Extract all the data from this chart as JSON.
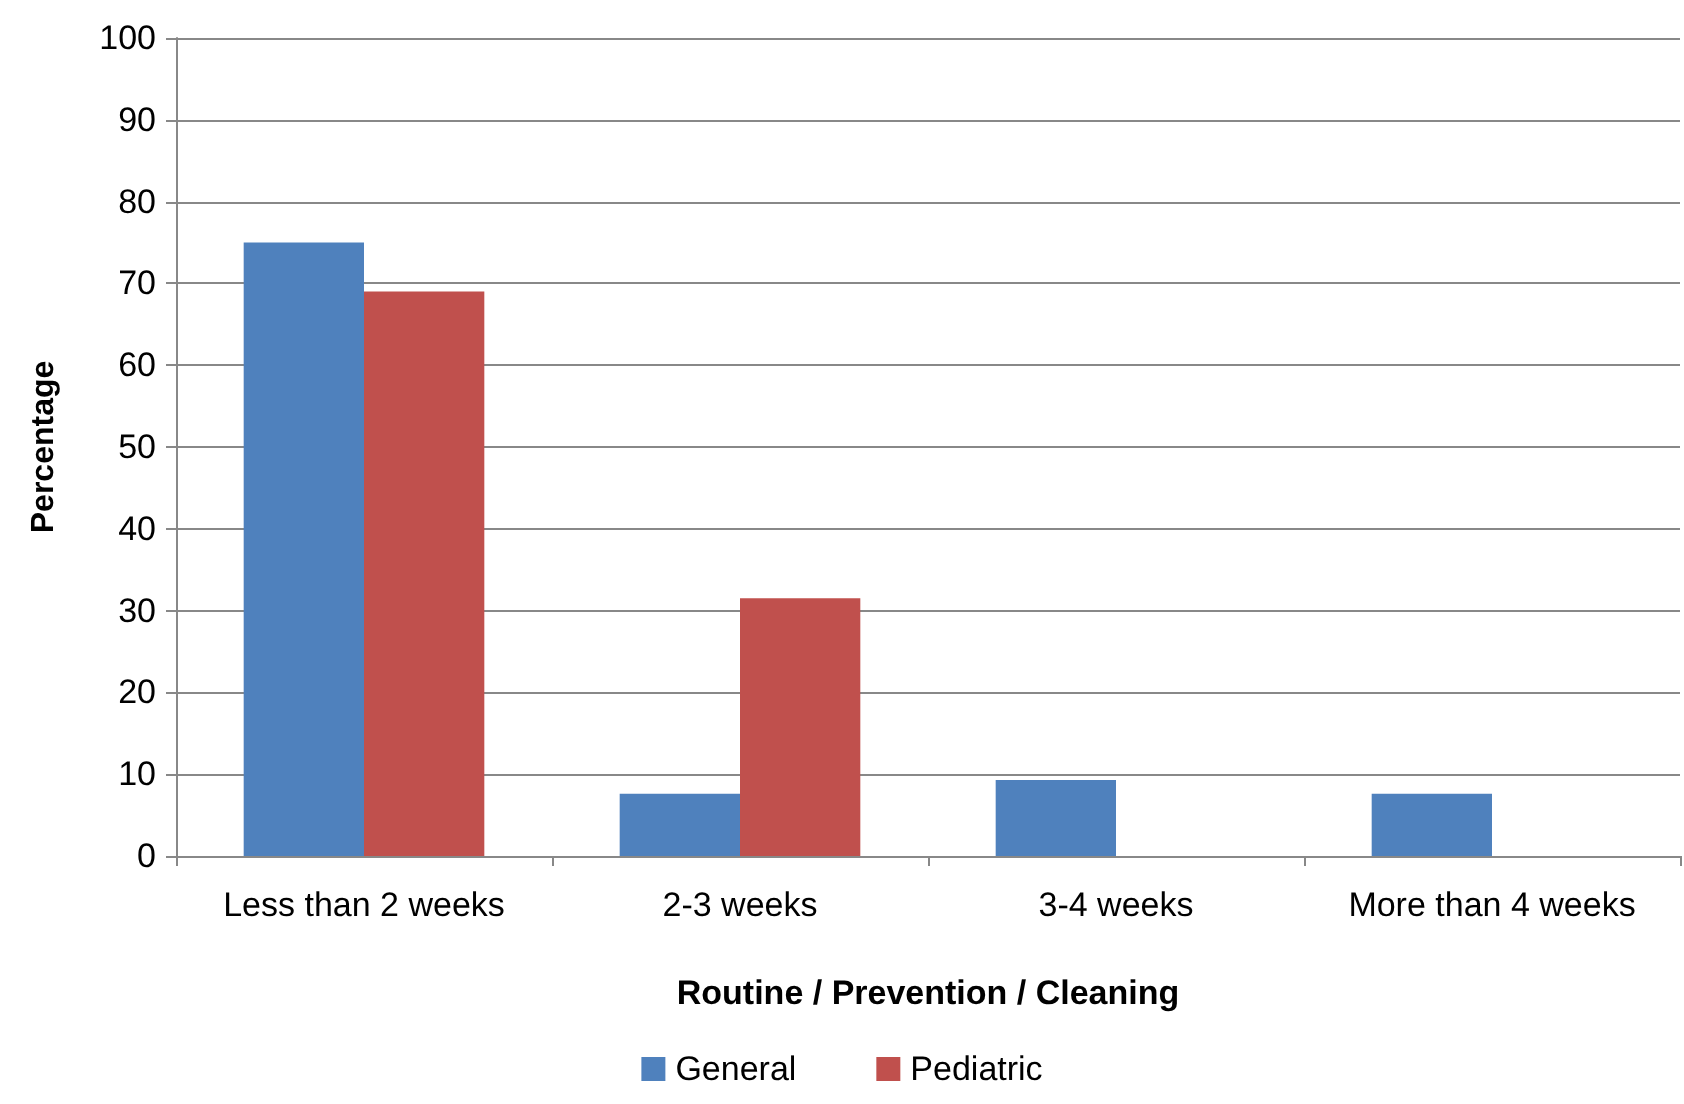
{
  "chart_data": {
    "type": "bar",
    "xlabel": "Routine / Prevention / Cleaning",
    "ylabel": "Percentage",
    "categories": [
      "Less than 2 weeks",
      "2-3 weeks",
      "3-4 weeks",
      "More than 4 weeks"
    ],
    "series": [
      {
        "name": "General",
        "color": "#4f81bd",
        "values": [
          75,
          7.6,
          9.3,
          7.6
        ]
      },
      {
        "name": "Pediatric",
        "color": "#c0504d",
        "values": [
          69,
          31.5,
          0,
          0
        ]
      }
    ],
    "ylim": [
      0,
      100
    ],
    "yticks": [
      0,
      10,
      20,
      30,
      40,
      50,
      60,
      70,
      80,
      90,
      100
    ],
    "grid": "y",
    "legend": "bottom"
  }
}
